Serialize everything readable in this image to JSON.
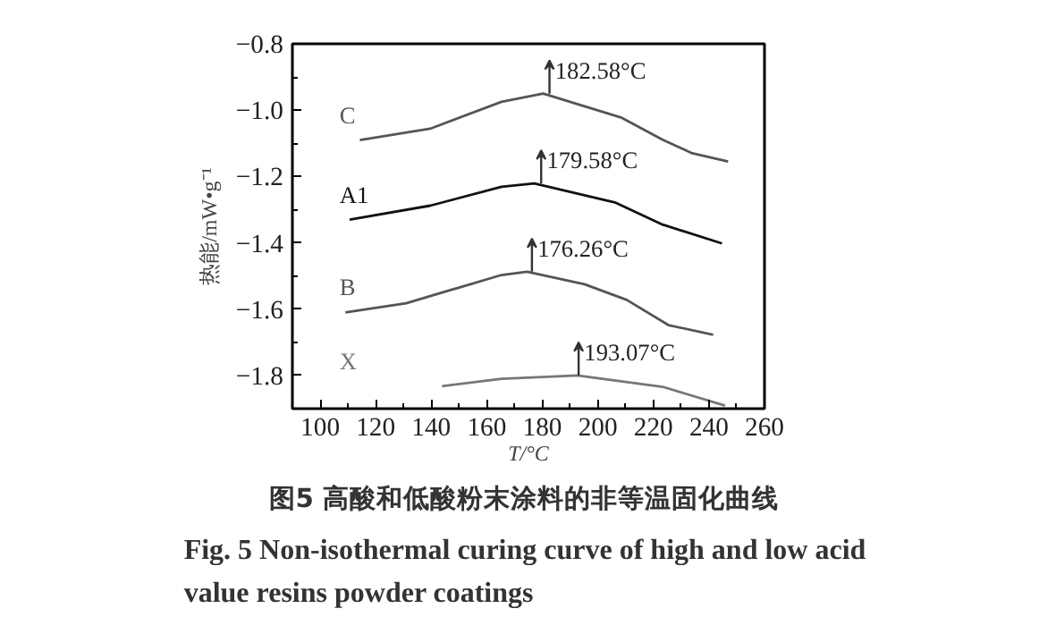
{
  "chart_data": {
    "type": "line",
    "title": "图5  高酸和低酸粉末涂料的非等温固化曲线",
    "subtitle": "Fig. 5  Non-isothermal curing curve of high and low acid value resins powder coatings",
    "xlabel": "T/°C",
    "ylabel": "热能/mW•g⁻¹",
    "xlim": [
      90,
      260
    ],
    "xticks": [
      100,
      120,
      140,
      160,
      180,
      200,
      220,
      240,
      260
    ],
    "ylim": [
      -1.9,
      -0.8
    ],
    "yticks": [
      {
        "value": -1.8,
        "label": "−1.8"
      },
      {
        "value": -1.6,
        "label": "−1.6"
      },
      {
        "value": -1.4,
        "label": "−1.4"
      },
      {
        "value": -1.2,
        "label": "−1.2"
      },
      {
        "value": -1.0,
        "label": "−1.0"
      },
      {
        "value": -0.8,
        "label": "−0.8"
      }
    ],
    "grid": false,
    "marker": "none",
    "line_style": "solid",
    "series": [
      {
        "name": "C",
        "color": "#555555",
        "x": [
          114.3,
          139.6,
          165.3,
          180.3,
          208.3,
          223.3,
          234,
          246.9
        ],
        "values": [
          -1.09,
          -1.056,
          -0.975,
          -0.95,
          -1.022,
          -1.089,
          -1.13,
          -1.155
        ]
      },
      {
        "name": "A1",
        "color": "#111111",
        "x": [
          110.6,
          139.6,
          165.3,
          177.1,
          206.1,
          223.3,
          244.7
        ],
        "values": [
          -1.33,
          -1.288,
          -1.231,
          -1.221,
          -1.278,
          -1.345,
          -1.402
        ]
      },
      {
        "name": "B",
        "color": "#555555",
        "x": [
          109.1,
          131,
          165.3,
          174.5,
          195.2,
          210.4,
          225.4,
          241.5
        ],
        "values": [
          -1.61,
          -1.582,
          -1.497,
          -1.487,
          -1.525,
          -1.572,
          -1.648,
          -1.677
        ]
      },
      {
        "name": "X",
        "color": "#777777",
        "x": [
          143.9,
          165.3,
          192.6,
          223.3,
          245.8
        ],
        "values": [
          -1.832,
          -1.81,
          -1.8,
          -1.834,
          -1.891
        ]
      }
    ],
    "annotations": [
      {
        "text": "182.58°C",
        "x": 182.58,
        "y": -0.95
      },
      {
        "text": "179.58°C",
        "x": 179.58,
        "y": -1.221
      },
      {
        "text": "176.26°C",
        "x": 176.26,
        "y": -1.487
      },
      {
        "text": "193.07°C",
        "x": 193.07,
        "y": -1.8
      }
    ]
  }
}
